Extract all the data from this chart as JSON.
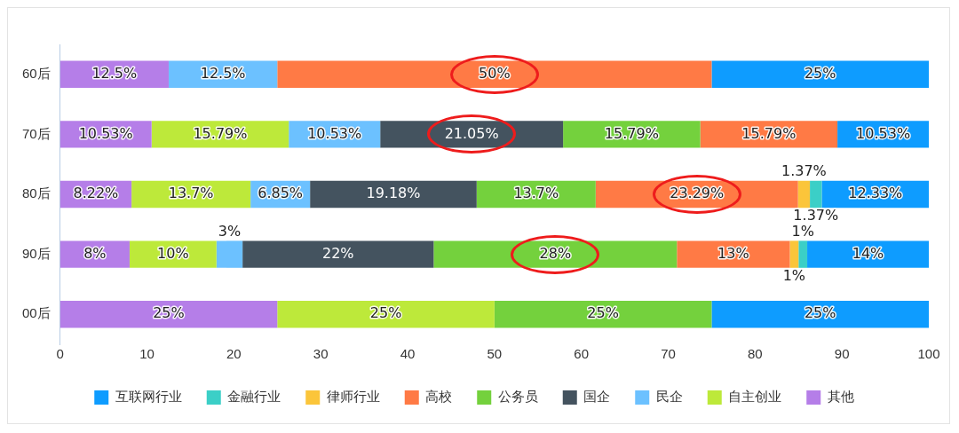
{
  "chart_data": {
    "type": "bar",
    "orientation": "horizontal",
    "stacked": true,
    "legend": "bottom",
    "grid": false,
    "categories": [
      "60后",
      "70后",
      "80后",
      "90后",
      "00后"
    ],
    "xlim": [
      0,
      100
    ],
    "xticks": [
      0,
      10,
      20,
      30,
      40,
      50,
      60,
      70,
      80,
      90,
      100
    ],
    "series": [
      {
        "name": "其他",
        "color": "#b57ee8",
        "values": [
          12.5,
          10.53,
          8.22,
          8,
          25
        ],
        "value_labels": [
          "12.5%",
          "10.53%",
          "8.22%",
          "8%",
          "25%"
        ]
      },
      {
        "name": "自主创业",
        "color": "#bde93a",
        "values": [
          null,
          15.79,
          13.7,
          10,
          25
        ],
        "value_labels": [
          null,
          "15.79%",
          "13.7%",
          "10%",
          "25%"
        ]
      },
      {
        "name": "民企",
        "color": "#6cc1ff",
        "values": [
          12.5,
          10.53,
          6.85,
          3,
          null
        ],
        "value_labels": [
          "12.5%",
          "10.53%",
          "6.85%",
          "3%",
          null
        ]
      },
      {
        "name": "国企",
        "color": "#44535f",
        "values": [
          null,
          21.05,
          19.18,
          22,
          null
        ],
        "value_labels": [
          null,
          "21.05%",
          "19.18%",
          "22%",
          null
        ]
      },
      {
        "name": "公务员",
        "color": "#74d13d",
        "values": [
          null,
          15.79,
          13.7,
          28,
          25
        ],
        "value_labels": [
          null,
          "15.79%",
          "13.7%",
          "28%",
          "25%"
        ]
      },
      {
        "name": "高校",
        "color": "#ff7a45",
        "values": [
          50,
          15.79,
          23.29,
          13,
          null
        ],
        "value_labels": [
          "50%",
          "15.79%",
          "23.29%",
          "13%",
          null
        ]
      },
      {
        "name": "律师行业",
        "color": "#fbc53a",
        "values": [
          null,
          null,
          1.37,
          1,
          null
        ],
        "value_labels": [
          null,
          null,
          "1.37%",
          "1%",
          null
        ]
      },
      {
        "name": "金融行业",
        "color": "#3bcfc7",
        "values": [
          null,
          null,
          1.37,
          1,
          null
        ],
        "value_labels": [
          null,
          null,
          "1.37%",
          "1%",
          null
        ]
      },
      {
        "name": "互联网行业",
        "color": "#0e9cff",
        "values": [
          25,
          10.53,
          12.33,
          14,
          25
        ],
        "value_labels": [
          "25%",
          "10.53%",
          "12.33%",
          "14%",
          "25%"
        ]
      }
    ]
  }
}
